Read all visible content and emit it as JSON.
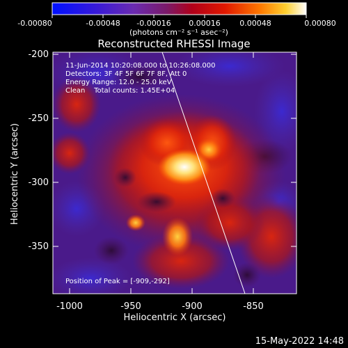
{
  "colorbar": {
    "ticks": [
      "-0.00080",
      "-0.00048",
      "-0.00016",
      "0.00016",
      "0.00048",
      "0.00080"
    ],
    "units": "(photons cm⁻² s⁻¹ asec⁻²)"
  },
  "title": "Reconstructed RHESSI Image",
  "info": {
    "time_range": "11-Jun-2014 10:20:08.000 to 10:26:08.000",
    "detectors": "Detectors: 3F 4F 5F 6F 7F 8F, Att 0",
    "energy": "Energy Range: 12.0 - 25.0 keV",
    "clean": "Clean    Total counts: 1.45E+04"
  },
  "peak_label": "Position of Peak = [-909,-292]",
  "x_axis": {
    "label": "Heliocentric X (arcsec)",
    "ticks": [
      "-1000",
      "-950",
      "-900",
      "-850"
    ]
  },
  "y_axis": {
    "label": "Heliocentric Y (arcsec)",
    "ticks": [
      "-200",
      "-250",
      "-300",
      "-350"
    ]
  },
  "timestamp": "15-May-2022 14:48",
  "colors": {
    "background": "#000000",
    "text": "#ffffff"
  }
}
